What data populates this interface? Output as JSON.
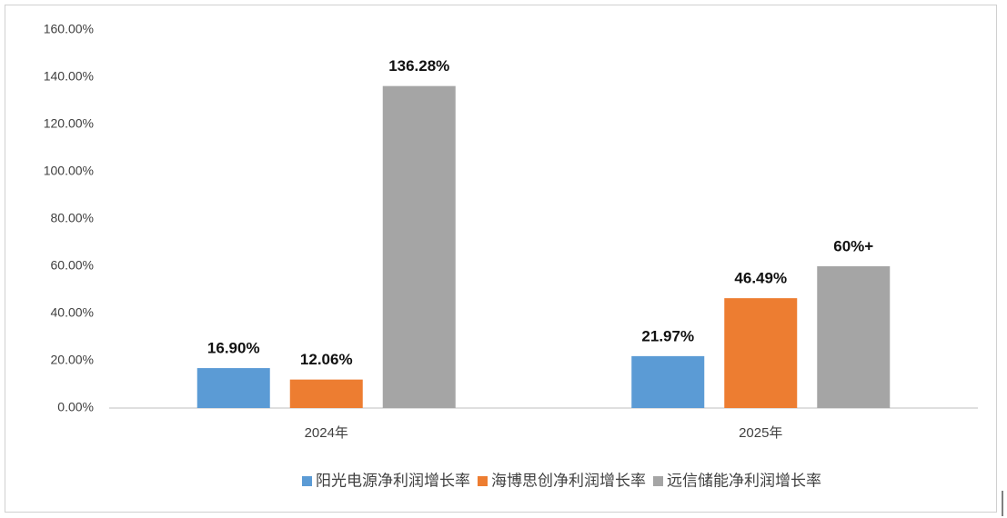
{
  "chart_data": {
    "type": "bar",
    "categories": [
      "2024年",
      "2025年"
    ],
    "series": [
      {
        "name": "阳光电源净利润增长率",
        "color": "#5b9bd5",
        "values": [
          16.9,
          21.97
        ],
        "value_labels": [
          "16.90%",
          "21.97%"
        ]
      },
      {
        "name": "海博思创净利润增长率",
        "color": "#ed7d31",
        "values": [
          12.06,
          46.49
        ],
        "value_labels": [
          "12.06%",
          "46.49%"
        ]
      },
      {
        "name": "远信储能净利润增长率",
        "color": "#a5a5a5",
        "values": [
          136.28,
          60
        ],
        "value_labels": [
          "136.28%",
          "60%+"
        ]
      }
    ],
    "ylim": [
      0,
      160
    ],
    "yticks": [
      {
        "value": 0,
        "label": "0.00%"
      },
      {
        "value": 20,
        "label": "20.00%"
      },
      {
        "value": 40,
        "label": "40.00%"
      },
      {
        "value": 60,
        "label": "60.00%"
      },
      {
        "value": 80,
        "label": "80.00%"
      },
      {
        "value": 100,
        "label": "100.00%"
      },
      {
        "value": 120,
        "label": "120.00%"
      },
      {
        "value": 140,
        "label": "140.00%"
      },
      {
        "value": 160,
        "label": "160.00%"
      }
    ],
    "grid": false,
    "legend": "bottom"
  }
}
